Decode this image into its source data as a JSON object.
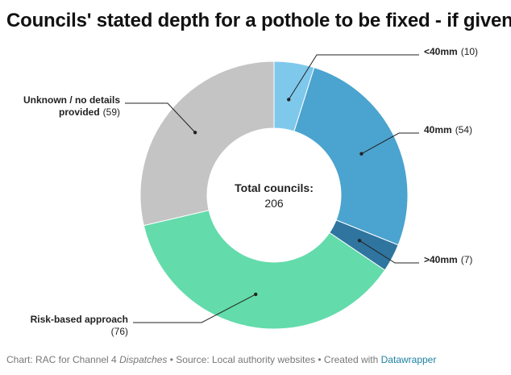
{
  "chart_data": {
    "type": "pie",
    "title": "Councils' stated depth for a pothole to be fixed - if given",
    "center_label": "Total councils:",
    "center_value": "206",
    "slices": [
      {
        "label": "<40mm",
        "value": 10,
        "value_text": "(10)",
        "color": "#7ec8ec"
      },
      {
        "label": "40mm",
        "value": 54,
        "value_text": "(54)",
        "color": "#4ba3cf"
      },
      {
        "label": ">40mm",
        "value": 7,
        "value_text": "(7)",
        "color": "#2f75a0"
      },
      {
        "label": "Risk-based approach",
        "value": 76,
        "value_text": "(76)",
        "color": "#63dbab"
      },
      {
        "label": "Unknown / no details provided",
        "value": 59,
        "value_text": "(59)",
        "color": "#c4c4c4"
      }
    ]
  },
  "footer": {
    "prefix": "Chart: RAC for Channel 4 ",
    "italic": "Dispatches",
    "middle": " • Source: Local authority websites • Created with ",
    "link": "Datawrapper"
  }
}
